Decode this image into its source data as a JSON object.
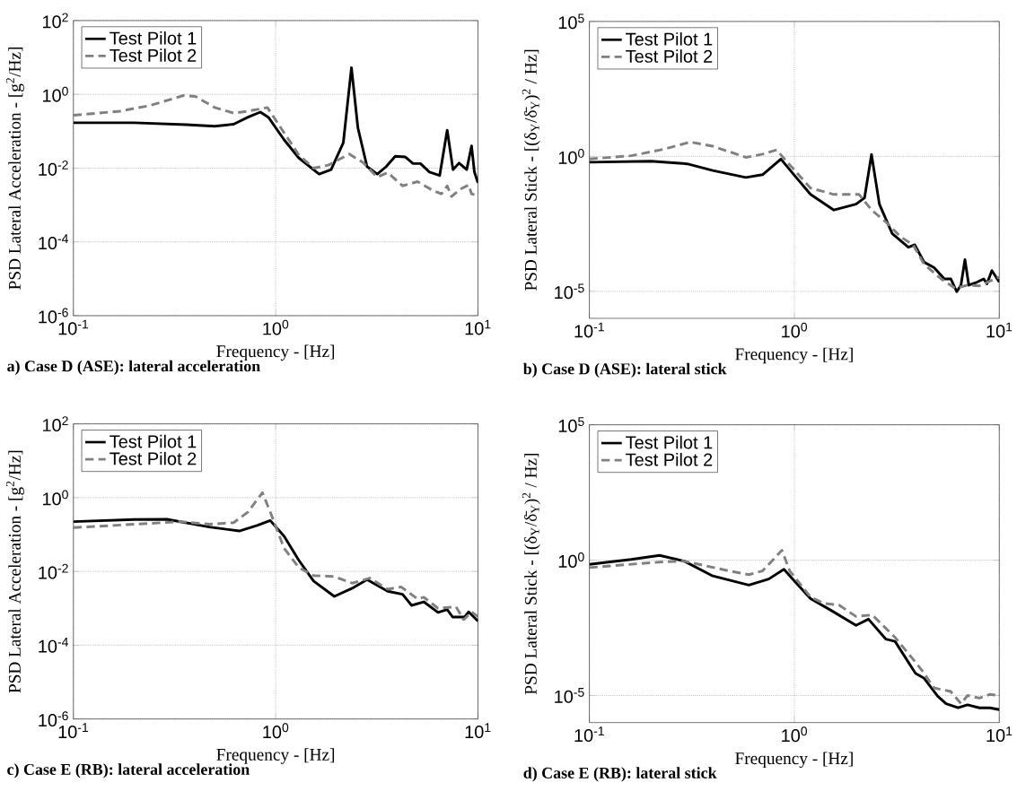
{
  "chart_data": [
    {
      "type": "line",
      "title": "a) Case D (ASE): lateral acceleration",
      "xlabel": "Frequency - [Hz]",
      "ylabel": "PSD Lateral Acceleration - [g$^{2}$/Hz]",
      "log": "xy",
      "grid": true,
      "legend": "top left",
      "xlim": [
        0.1,
        10
      ],
      "ylim": [
        1e-06,
        100
      ],
      "xticks": [
        {
          "value": 0.1,
          "label": "10$^{-1}$"
        },
        {
          "value": 1,
          "label": "10$^{0}$"
        },
        {
          "value": 10,
          "label": "10$^{1}$"
        }
      ],
      "yticks": [
        {
          "value": 1e-06,
          "label": "10$^{-6}$"
        },
        {
          "value": 0.0001,
          "label": "10$^{-4}$"
        },
        {
          "value": 0.01,
          "label": "10$^{-2}$"
        },
        {
          "value": 1,
          "label": "10$^{0}$"
        },
        {
          "value": 100,
          "label": "10$^{2}$"
        }
      ],
      "series": [
        {
          "name": "Test Pilot 1",
          "color": "#000000",
          "line_style": "solid",
          "x": [
            0.1,
            0.2,
            0.36,
            0.5,
            0.62,
            0.73,
            0.84,
            0.92,
            1.1,
            1.3,
            1.64,
            1.88,
            2.16,
            2.37,
            2.55,
            2.83,
            3.18,
            3.52,
            3.9,
            4.38,
            4.78,
            5.2,
            5.76,
            6.47,
            7.05,
            7.53,
            8.07,
            8.8,
            9.3,
            9.6,
            10
          ],
          "values": [
            0.17,
            0.17,
            0.15,
            0.137,
            0.155,
            0.24,
            0.33,
            0.24,
            0.059,
            0.019,
            0.0069,
            0.0091,
            0.049,
            5.3,
            0.124,
            0.011,
            0.0069,
            0.011,
            0.021,
            0.02,
            0.0133,
            0.0133,
            0.0078,
            0.0063,
            0.107,
            0.0091,
            0.0137,
            0.0091,
            0.04,
            0.008,
            0.004
          ]
        },
        {
          "name": "Test Pilot 2",
          "color": "#808080",
          "line_style": "dashed",
          "x": [
            0.1,
            0.17,
            0.24,
            0.35,
            0.4,
            0.5,
            0.62,
            0.73,
            0.91,
            1.06,
            1.3,
            1.54,
            1.82,
            2.31,
            2.69,
            3.18,
            3.58,
            4.24,
            5.03,
            5.97,
            6.6,
            7.05,
            7.4,
            8.2,
            9,
            9.3,
            10
          ],
          "values": [
            0.27,
            0.35,
            0.5,
            0.93,
            0.88,
            0.44,
            0.31,
            0.35,
            0.44,
            0.124,
            0.023,
            0.01,
            0.012,
            0.024,
            0.0145,
            0.0057,
            0.0076,
            0.0033,
            0.0043,
            0.0025,
            0.002,
            0.0033,
            0.0017,
            0.0027,
            0.0035,
            0.002,
            0.0018
          ]
        }
      ]
    },
    {
      "type": "line",
      "title": "b) Case D (ASE): lateral stick",
      "xlabel": "Frequency - [Hz]",
      "ylabel": "PSD Lateral Stick - [(δ$_{Y}$/δ̄$_{Y}$)$^{2}$ / Hz]",
      "log": "xy",
      "grid": true,
      "legend": "top left",
      "xlim": [
        0.1,
        10
      ],
      "ylim": [
        1e-06,
        100000
      ],
      "xticks": [
        {
          "value": 0.1,
          "label": "10$^{-1}$"
        },
        {
          "value": 1,
          "label": "10$^{0}$"
        },
        {
          "value": 10,
          "label": "10$^{1}$"
        }
      ],
      "yticks": [
        {
          "value": 1e-05,
          "label": "10$^{-5}$"
        },
        {
          "value": 1,
          "label": "10$^{0}$"
        },
        {
          "value": 100000,
          "label": "10$^{5}$"
        }
      ],
      "series": [
        {
          "name": "Test Pilot 1",
          "color": "#000000",
          "line_style": "solid",
          "x": [
            0.1,
            0.2,
            0.3,
            0.4,
            0.58,
            0.7,
            0.86,
            1.0,
            1.2,
            1.56,
            2.0,
            2.2,
            2.38,
            2.6,
            3.0,
            3.6,
            3.87,
            4.3,
            4.8,
            5.4,
            5.8,
            6.2,
            6.5,
            6.8,
            7.1,
            7.8,
            8.4,
            8.7,
            9.2,
            10
          ],
          "values": [
            0.61,
            0.66,
            0.53,
            0.3,
            0.166,
            0.21,
            0.8,
            0.2,
            0.039,
            0.0103,
            0.017,
            0.029,
            1.18,
            0.017,
            0.0014,
            0.00043,
            0.00053,
            0.00012,
            7.7e-05,
            2.9e-05,
            2.9e-05,
            9.7e-06,
            1.7e-05,
            0.00015,
            1.7e-05,
            2.2e-05,
            2.9e-05,
            1.9e-05,
            5.9e-05,
            2.2e-05
          ]
        },
        {
          "name": "Test Pilot 2",
          "color": "#808080",
          "line_style": "dashed",
          "x": [
            0.1,
            0.16,
            0.23,
            0.31,
            0.4,
            0.58,
            0.7,
            0.82,
            0.94,
            1.2,
            1.56,
            2.07,
            2.4,
            2.8,
            3.3,
            3.8,
            4.3,
            5.2,
            6.1,
            7.0,
            8.0,
            10
          ],
          "values": [
            0.8,
            1.06,
            1.84,
            3.4,
            2.4,
            0.92,
            1.21,
            1.74,
            0.53,
            0.067,
            0.039,
            0.039,
            0.0097,
            0.0037,
            0.00105,
            0.00053,
            0.0001,
            2.9e-05,
            1.3e-05,
            1.7e-05,
            1.6e-05,
            3.4e-05
          ]
        }
      ]
    },
    {
      "type": "line",
      "title": "c) Case E (RB): lateral acceleration",
      "xlabel": "Frequency - [Hz]",
      "ylabel": "PSD Lateral Acceleration - [g$^{2}$/Hz]",
      "log": "xy",
      "grid": true,
      "legend": "top left",
      "xlim": [
        0.1,
        10
      ],
      "ylim": [
        1e-06,
        100
      ],
      "xticks": [
        {
          "value": 0.1,
          "label": "10$^{-1}$"
        },
        {
          "value": 1,
          "label": "10$^{0}$"
        },
        {
          "value": 10,
          "label": "10$^{1}$"
        }
      ],
      "yticks": [
        {
          "value": 1e-06,
          "label": "10$^{-6}$"
        },
        {
          "value": 0.0001,
          "label": "10$^{-4}$"
        },
        {
          "value": 0.01,
          "label": "10$^{-2}$"
        },
        {
          "value": 1,
          "label": "10$^{0}$"
        },
        {
          "value": 100,
          "label": "10$^{2}$"
        }
      ],
      "series": [
        {
          "name": "Test Pilot 1",
          "color": "#000000",
          "line_style": "solid",
          "x": [
            0.1,
            0.2,
            0.29,
            0.47,
            0.66,
            0.81,
            0.94,
            1.1,
            1.3,
            1.54,
            1.95,
            2.39,
            2.83,
            3.58,
            4.24,
            4.7,
            5.4,
            6.35,
            7.05,
            7.5,
            8.6,
            9,
            10
          ],
          "values": [
            0.224,
            0.255,
            0.26,
            0.16,
            0.125,
            0.176,
            0.24,
            0.091,
            0.0203,
            0.0055,
            0.0021,
            0.0035,
            0.006,
            0.0029,
            0.0024,
            0.0012,
            0.0015,
            0.00077,
            0.00093,
            0.00058,
            0.00058,
            0.0008,
            0.00045
          ]
        },
        {
          "name": "Test Pilot 2",
          "color": "#808080",
          "line_style": "dashed",
          "x": [
            0.1,
            0.2,
            0.34,
            0.47,
            0.62,
            0.73,
            0.86,
            0.94,
            1.1,
            1.3,
            1.54,
            1.95,
            2.39,
            2.92,
            3.58,
            4.17,
            5.03,
            5.4,
            6.35,
            7.8,
            8.5,
            9.3,
            10
          ],
          "values": [
            0.154,
            0.19,
            0.224,
            0.19,
            0.21,
            0.41,
            1.37,
            0.41,
            0.043,
            0.0128,
            0.0077,
            0.0073,
            0.0048,
            0.0066,
            0.0033,
            0.0038,
            0.0018,
            0.002,
            0.001,
            0.0011,
            0.00049,
            0.0008,
            0.0006
          ]
        }
      ]
    },
    {
      "type": "line",
      "title": "d) Case E (RB): lateral stick",
      "xlabel": "Frequency - [Hz]",
      "ylabel": "PSD Lateral Stick - [(δ$_{Y}$/δ̄$_{Y}$)$^{2}$ / Hz]",
      "log": "xy",
      "grid": true,
      "legend": "top left",
      "xlim": [
        0.1,
        10
      ],
      "ylim": [
        1e-06,
        100000
      ],
      "xticks": [
        {
          "value": 0.1,
          "label": "10$^{-1}$"
        },
        {
          "value": 1,
          "label": "10$^{0}$"
        },
        {
          "value": 10,
          "label": "10$^{1}$"
        }
      ],
      "yticks": [
        {
          "value": 1e-05,
          "label": "10$^{-5}$"
        },
        {
          "value": 1,
          "label": "10$^{0}$"
        },
        {
          "value": 100000,
          "label": "10$^{5}$"
        }
      ],
      "series": [
        {
          "name": "Test Pilot 1",
          "color": "#000000",
          "line_style": "solid",
          "x": [
            0.1,
            0.16,
            0.22,
            0.29,
            0.4,
            0.6,
            0.75,
            0.89,
            1.0,
            1.2,
            1.5,
            2.0,
            2.3,
            2.8,
            3.1,
            3.9,
            4.3,
            5.0,
            5.5,
            6.3,
            7.0,
            8.0,
            9.0,
            10
          ],
          "values": [
            0.7,
            1.06,
            1.5,
            0.92,
            0.26,
            0.12,
            0.2,
            0.46,
            0.17,
            0.038,
            0.0144,
            0.0039,
            0.0066,
            0.0012,
            0.001,
            6.6e-05,
            4.3e-05,
            9.5e-06,
            5e-06,
            3.5e-06,
            4.5e-06,
            3.5e-06,
            3.5e-06,
            3e-06
          ]
        },
        {
          "name": "Test Pilot 2",
          "color": "#808080",
          "line_style": "dashed",
          "x": [
            0.1,
            0.22,
            0.29,
            0.48,
            0.6,
            0.7,
            0.87,
            0.95,
            1.2,
            1.4,
            1.65,
            2.0,
            2.4,
            3.1,
            3.9,
            4.3,
            4.8,
            5.8,
            6.5,
            7.0,
            8.0,
            9.0,
            10
          ],
          "values": [
            0.53,
            0.85,
            0.92,
            0.4,
            0.29,
            0.4,
            2.3,
            0.4,
            0.043,
            0.025,
            0.022,
            0.0083,
            0.0095,
            0.0014,
            0.00017,
            6.6e-05,
            1.9e-05,
            1.4e-05,
            5e-06,
            1e-05,
            8e-06,
            1.1e-05,
            1e-05
          ]
        }
      ]
    }
  ]
}
